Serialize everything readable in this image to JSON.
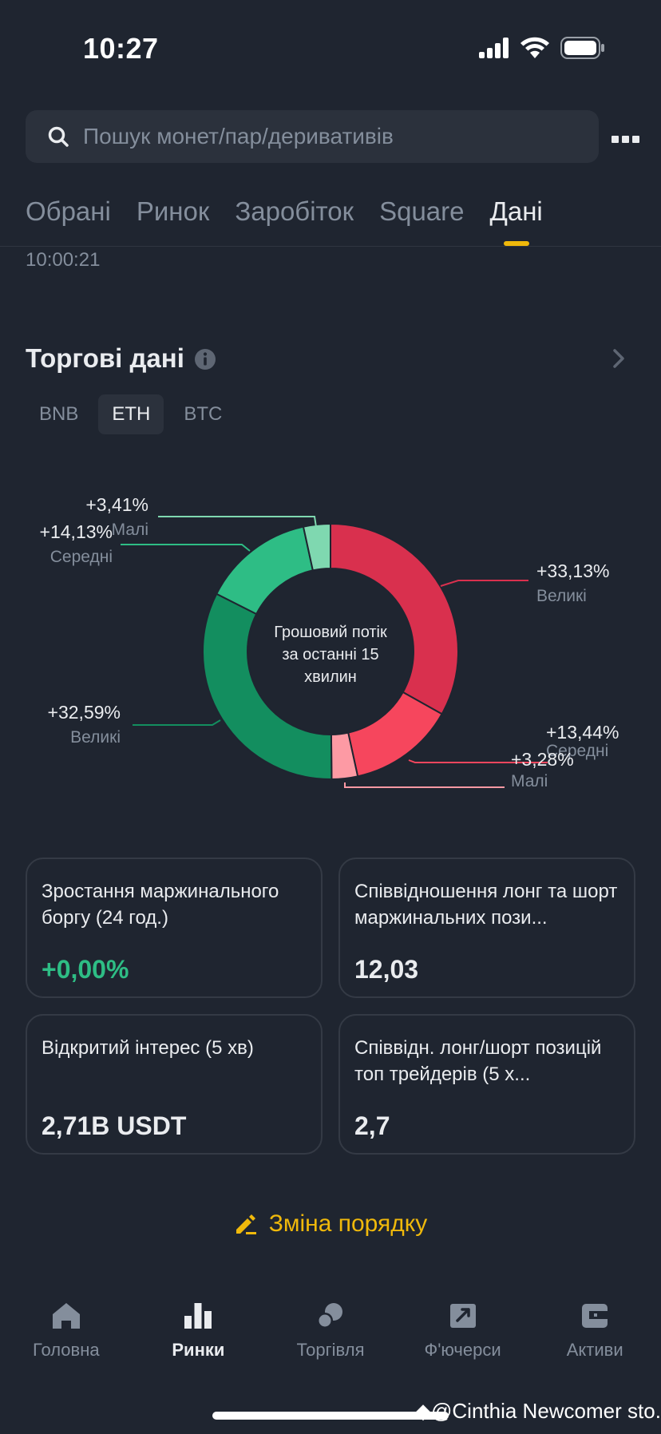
{
  "status_bar": {
    "time": "10:27"
  },
  "search": {
    "placeholder": "Пошук монет/пар/деривативів"
  },
  "tabs": [
    {
      "label": "Обрані"
    },
    {
      "label": "Ринок"
    },
    {
      "label": "Заробіток"
    },
    {
      "label": "Square"
    },
    {
      "label": "Дані",
      "active": true
    }
  ],
  "timestamp": "10:00:21",
  "section": {
    "title": "Торгові дані"
  },
  "coin_tabs": [
    {
      "label": "BNB"
    },
    {
      "label": "ETH",
      "active": true
    },
    {
      "label": "BTC"
    }
  ],
  "chart_data": {
    "type": "pie",
    "center_label": [
      "Грошовий потік",
      "за останні 15",
      "хвилин"
    ],
    "slices": [
      {
        "value": "+33,13%",
        "label": "Великі",
        "pct": 33.13,
        "color": "#d9304e"
      },
      {
        "value": "+13,44%",
        "label": "Середні",
        "pct": 13.44,
        "color": "#f6465d"
      },
      {
        "value": "+3,28%",
        "label": "Малі",
        "pct": 3.28,
        "color": "#fd9aa4"
      },
      {
        "value": "+32,59%",
        "label": "Великі",
        "pct": 32.59,
        "color": "#138e5f"
      },
      {
        "value": "+14,13%",
        "label": "Середні",
        "pct": 14.13,
        "color": "#2ebd85"
      },
      {
        "value": "+3,41%",
        "label": "Малі",
        "pct": 3.41,
        "color": "#7fd8b0"
      }
    ]
  },
  "cards": [
    {
      "title": "Зростання маржинального боргу (24 год.)",
      "value": "+0,00%",
      "positive": true
    },
    {
      "title": "Співвідношення лонг та шорт маржинальних пози...",
      "value": "12,03"
    },
    {
      "title": "Відкритий інтерес (5 хв)",
      "value": "2,71B USDT"
    },
    {
      "title": "Співвідн. лонг/шорт позицій топ трейдерів (5 х...",
      "value": "2,7"
    }
  ],
  "reorder": {
    "label": "Зміна порядку"
  },
  "bottom_nav": [
    {
      "label": "Головна",
      "icon": "home-icon"
    },
    {
      "label": "Ринки",
      "icon": "markets-icon",
      "active": true
    },
    {
      "label": "Торгівля",
      "icon": "trade-icon"
    },
    {
      "label": "Ф'ючерси",
      "icon": "futures-icon"
    },
    {
      "label": "Активи",
      "icon": "wallet-icon"
    }
  ],
  "watermark": "◆@Cinthia Newcomer sto..."
}
